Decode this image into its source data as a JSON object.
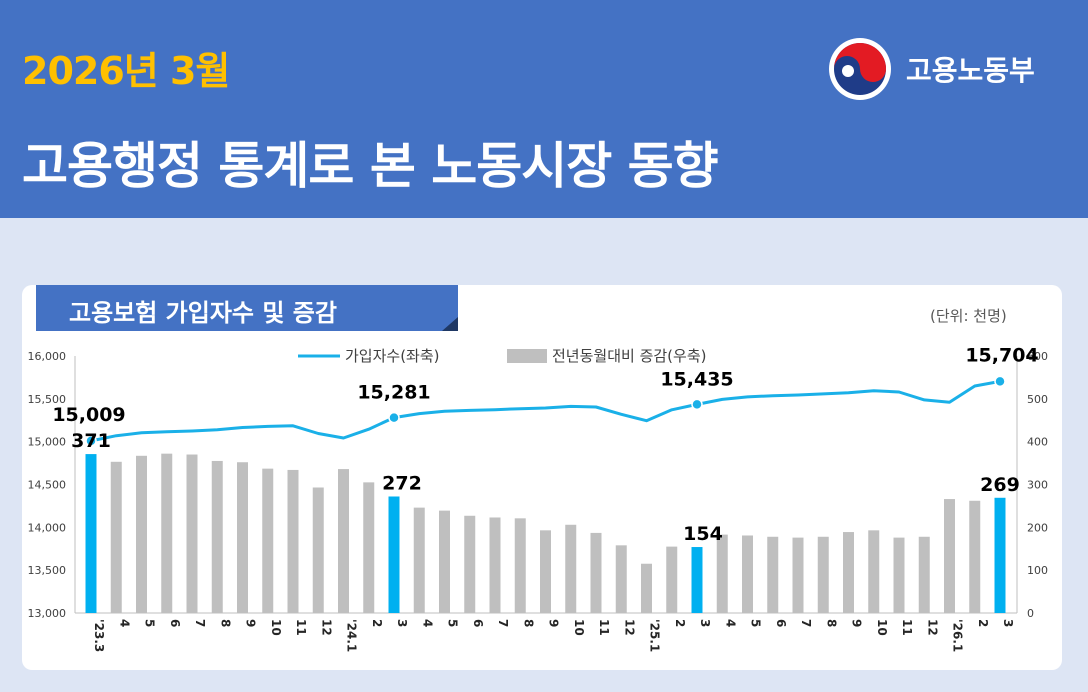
{
  "header": {
    "subtitle": "2026년 3월",
    "title": "고용행정 통계로 본 노동시장 동향",
    "logo_text": "고용노동부"
  },
  "card": {
    "title": "고용보험 가입자수 및 증감",
    "unit": "(단위: 천명)"
  },
  "colors": {
    "banner": "#4472c4",
    "accent_yellow": "#ffc000",
    "line": "#1ab0e8",
    "bar_gray": "#bfbfbf",
    "bar_highlight": "#00b0f0"
  },
  "chart_data": {
    "type": "bar+line",
    "legend": [
      "가입자수(좌축)",
      "전년동월대비 증감(우축)"
    ],
    "categories": [
      "'23.3",
      "4",
      "5",
      "6",
      "7",
      "8",
      "9",
      "10",
      "11",
      "12",
      "'24.1",
      "2",
      "3",
      "4",
      "5",
      "6",
      "7",
      "8",
      "9",
      "10",
      "11",
      "12",
      "'25.1",
      "2",
      "3",
      "4",
      "5",
      "6",
      "7",
      "8",
      "9",
      "10",
      "11",
      "12",
      "'26.1",
      "2",
      "3"
    ],
    "series": [
      {
        "name": "가입자수(좌축)",
        "axis": "left",
        "type": "line",
        "values": [
          15009,
          15070,
          15103,
          15115,
          15125,
          15140,
          15165,
          15178,
          15185,
          15095,
          15043,
          15145,
          15281,
          15328,
          15355,
          15365,
          15373,
          15385,
          15393,
          15412,
          15405,
          15320,
          15245,
          15372,
          15435,
          15493,
          15522,
          15537,
          15545,
          15558,
          15570,
          15595,
          15580,
          15488,
          15460,
          15650,
          15704
        ]
      },
      {
        "name": "전년동월대비 증감(우축)",
        "axis": "right",
        "type": "bar",
        "values": [
          371,
          353,
          367,
          372,
          370,
          355,
          352,
          337,
          334,
          293,
          336,
          305,
          272,
          246,
          239,
          227,
          223,
          221,
          193,
          206,
          187,
          158,
          115,
          155,
          154,
          183,
          181,
          178,
          176,
          178,
          189,
          193,
          176,
          178,
          266,
          262,
          269
        ]
      }
    ],
    "highlight_indices": [
      0,
      12,
      24,
      36
    ],
    "annotations": {
      "line": [
        {
          "index": 0,
          "label": "15,009"
        },
        {
          "index": 12,
          "label": "15,281"
        },
        {
          "index": 24,
          "label": "15,435"
        },
        {
          "index": 36,
          "label": "15,704"
        }
      ],
      "bar": [
        {
          "index": 0,
          "label": "371"
        },
        {
          "index": 12,
          "label": "272"
        },
        {
          "index": 24,
          "label": "154"
        },
        {
          "index": 36,
          "label": "269"
        }
      ]
    },
    "yleft": {
      "min": 13000,
      "max": 16000,
      "ticks": [
        "13,000",
        "13,500",
        "14,000",
        "14,500",
        "15,000",
        "15,500",
        "16,000"
      ]
    },
    "yright": {
      "min": 0,
      "max": 600,
      "ticks": [
        "0",
        "100",
        "200",
        "300",
        "400",
        "500",
        "600"
      ]
    },
    "grid": false,
    "legend_position": "top-center"
  }
}
